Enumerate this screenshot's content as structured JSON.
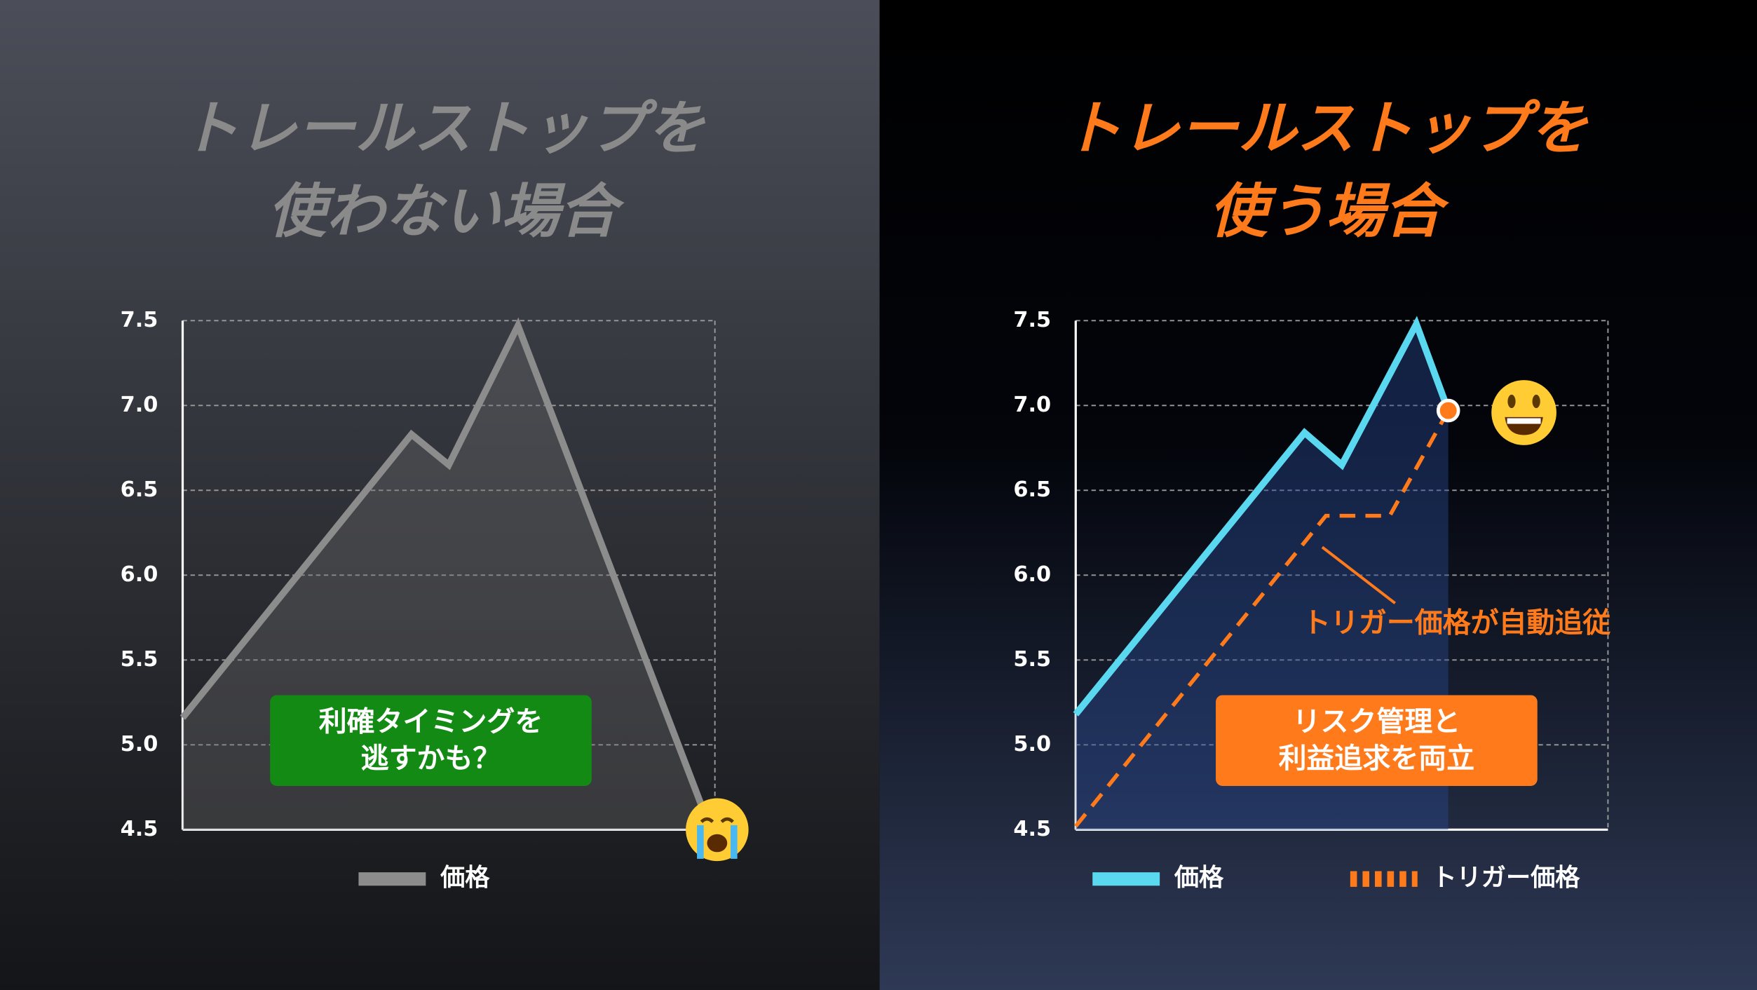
{
  "chart_data": [
    {
      "type": "line",
      "title": [
        "トレールストップを",
        "使わない場合"
      ],
      "title_color": "#8a8a8a",
      "xlim": [
        0,
        10
      ],
      "ylim": [
        4.5,
        7.5
      ],
      "yticks": [
        {
          "value": 7.5,
          "label": "7.5"
        },
        {
          "value": 7,
          "label": "7.0"
        },
        6.5,
        {
          "value": 6,
          "label": "6.0"
        },
        5.5,
        {
          "value": 5,
          "label": "5.0"
        },
        4.5
      ],
      "grid": true,
      "series": [
        {
          "name": "価格",
          "color": "#8c8c8c",
          "area_color": "rgba(110,110,110,0.35)",
          "x": [
            0,
            4.3,
            5.0,
            6.3,
            9.8
          ],
          "values": [
            5.16,
            6.83,
            6.65,
            7.47,
            4.6
          ]
        }
      ],
      "box": {
        "text": [
          "利確タイミングを",
          "逃すかも？"
        ],
        "color": "#138a13"
      }
    },
    {
      "type": "line",
      "title": [
        "トレールストップを",
        "使う場合"
      ],
      "title_color": "#ff7a1a",
      "xlim": [
        0,
        10
      ],
      "ylim": [
        4.5,
        7.5
      ],
      "yticks": [
        {
          "value": 7.5,
          "label": "7.5"
        },
        {
          "value": 7,
          "label": "7.0"
        },
        6.5,
        {
          "value": 6,
          "label": "6.0"
        },
        5.5,
        {
          "value": 5,
          "label": "5.0"
        },
        4.5
      ],
      "grid": true,
      "series": [
        {
          "name": "価格",
          "color": "#5ad8f0",
          "area_color": "rgba(40,70,140,0.45)",
          "x": [
            0,
            4.3,
            5.0,
            6.4,
            7.0
          ],
          "values": [
            5.18,
            6.84,
            6.65,
            7.48,
            6.97
          ]
        },
        {
          "name": "トリガー価格",
          "color": "#ff7a1a",
          "style": "dashed",
          "x": [
            0,
            4.7,
            5.9,
            7.0
          ],
          "values": [
            4.52,
            6.35,
            6.35,
            6.97
          ]
        }
      ],
      "end_marker": true,
      "callout": "トリガー価格が自動追従",
      "box": {
        "text": [
          "リスク管理と",
          "利益追求を両立"
        ],
        "color": "#ff7a1a"
      }
    }
  ]
}
